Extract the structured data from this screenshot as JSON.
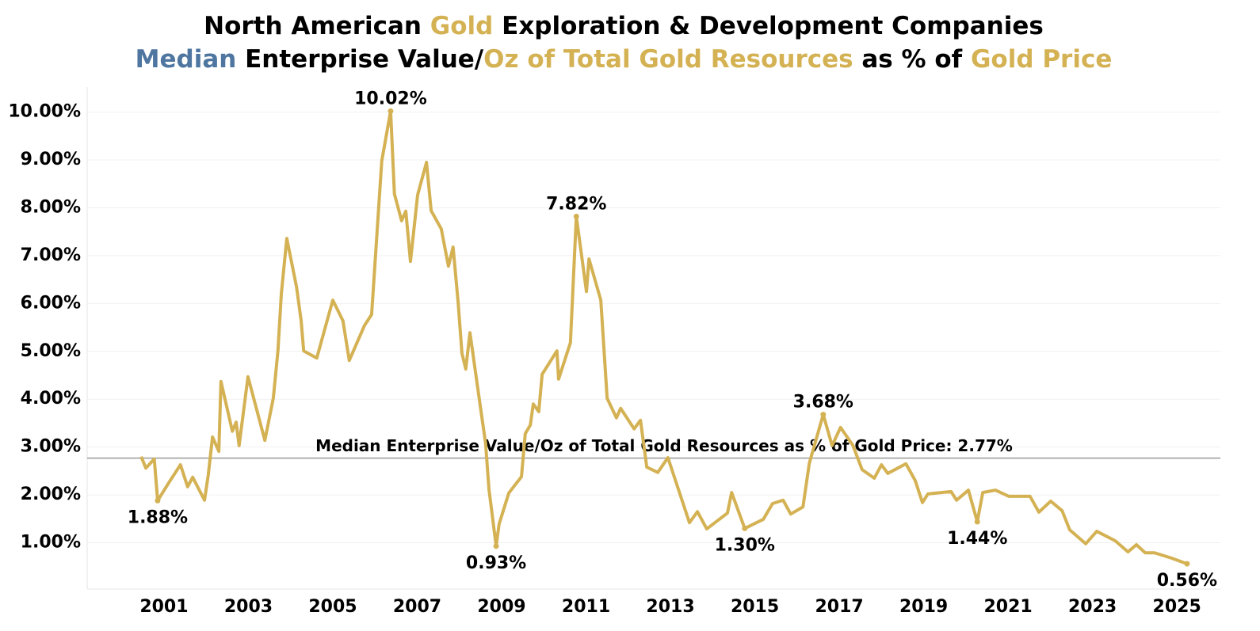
{
  "chart_data": {
    "type": "line",
    "title_lines": [
      [
        {
          "text": "North American ",
          "color": "#000000"
        },
        {
          "text": "Gold",
          "color": "#d4b254"
        },
        {
          "text": " Exploration & Development Companies",
          "color": "#000000"
        }
      ],
      [
        {
          "text": "Median",
          "color": "#4e76a0"
        },
        {
          "text": " Enterprise Value/",
          "color": "#000000"
        },
        {
          "text": "Oz of Total Gold Resources",
          "color": "#d4b254"
        },
        {
          "text": " as % of ",
          "color": "#000000"
        },
        {
          "text": "Gold Price",
          "color": "#d4b254"
        }
      ]
    ],
    "color": "#d4b254",
    "x": [
      2000.46,
      2000.57,
      2000.77,
      2000.85,
      2001.11,
      2001.39,
      2001.56,
      2001.68,
      2001.96,
      2002.05,
      2002.15,
      2002.3,
      2002.35,
      2002.62,
      2002.71,
      2002.78,
      2002.99,
      2003.39,
      2003.59,
      2003.7,
      2003.78,
      2003.91,
      2004.14,
      2004.25,
      2004.31,
      2004.62,
      2005.0,
      2005.24,
      2005.39,
      2005.75,
      2005.92,
      2006.16,
      2006.37,
      2006.46,
      2006.63,
      2006.73,
      2006.84,
      2007.01,
      2007.22,
      2007.33,
      2007.57,
      2007.74,
      2007.85,
      2007.97,
      2008.06,
      2008.15,
      2008.25,
      2008.46,
      2008.62,
      2008.7,
      2008.87,
      2008.94,
      2009.17,
      2009.47,
      2009.56,
      2009.68,
      2009.75,
      2009.88,
      2009.96,
      2010.31,
      2010.35,
      2010.63,
      2010.77,
      2011.01,
      2011.07,
      2011.35,
      2011.5,
      2011.72,
      2011.82,
      2012.14,
      2012.29,
      2012.44,
      2012.7,
      2012.94,
      2013.45,
      2013.64,
      2013.86,
      2014.35,
      2014.45,
      2014.76,
      2015.2,
      2015.42,
      2015.67,
      2015.85,
      2016.14,
      2016.29,
      2016.62,
      2016.83,
      2017.03,
      2017.32,
      2017.54,
      2017.83,
      2018.0,
      2018.15,
      2018.58,
      2018.8,
      2018.97,
      2019.1,
      2019.65,
      2019.78,
      2020.06,
      2020.27,
      2020.4,
      2020.7,
      2021.02,
      2021.52,
      2021.73,
      2022.01,
      2022.28,
      2022.46,
      2022.84,
      2023.1,
      2023.54,
      2023.84,
      2024.04,
      2024.25,
      2024.47,
      2024.87,
      2025.24
    ],
    "values": [
      2.8,
      2.56,
      2.75,
      1.88,
      2.25,
      2.63,
      2.17,
      2.37,
      1.89,
      2.42,
      3.21,
      2.91,
      4.37,
      3.33,
      3.52,
      3.03,
      4.47,
      3.14,
      4.02,
      5.01,
      6.2,
      7.36,
      6.35,
      5.64,
      5.01,
      4.86,
      6.07,
      5.64,
      4.81,
      5.54,
      5.77,
      8.98,
      10.02,
      8.29,
      7.73,
      7.93,
      6.88,
      8.27,
      8.95,
      7.94,
      7.56,
      6.78,
      7.18,
      6.02,
      4.96,
      4.63,
      5.39,
      4.07,
      3.08,
      2.12,
      0.93,
      1.39,
      2.04,
      2.38,
      3.28,
      3.46,
      3.9,
      3.74,
      4.52,
      5.01,
      4.42,
      5.18,
      7.82,
      6.25,
      6.93,
      6.07,
      4.02,
      3.61,
      3.81,
      3.38,
      3.56,
      2.58,
      2.47,
      2.78,
      1.42,
      1.65,
      1.29,
      1.62,
      2.05,
      1.3,
      1.49,
      1.82,
      1.89,
      1.6,
      1.75,
      2.66,
      3.68,
      3.03,
      3.41,
      3.04,
      2.53,
      2.35,
      2.63,
      2.45,
      2.65,
      2.3,
      1.84,
      2.02,
      2.07,
      1.89,
      2.1,
      1.44,
      2.05,
      2.1,
      1.97,
      1.97,
      1.64,
      1.87,
      1.67,
      1.27,
      0.98,
      1.24,
      1.04,
      0.81,
      0.96,
      0.79,
      0.79,
      0.68,
      0.56
    ],
    "value_labels": [
      null,
      null,
      null,
      "1.88%",
      null,
      null,
      null,
      null,
      null,
      null,
      null,
      null,
      null,
      null,
      null,
      null,
      null,
      null,
      null,
      null,
      null,
      null,
      null,
      null,
      null,
      null,
      null,
      null,
      null,
      null,
      null,
      null,
      "10.02%",
      null,
      null,
      null,
      null,
      null,
      null,
      null,
      null,
      null,
      null,
      null,
      null,
      null,
      null,
      null,
      null,
      null,
      "0.93%",
      null,
      null,
      null,
      null,
      null,
      null,
      null,
      null,
      null,
      null,
      null,
      "7.82%",
      null,
      null,
      null,
      null,
      null,
      null,
      null,
      null,
      null,
      null,
      null,
      null,
      null,
      null,
      null,
      null,
      "1.30%",
      null,
      null,
      null,
      null,
      null,
      null,
      "3.68%",
      null,
      null,
      null,
      null,
      null,
      null,
      null,
      null,
      null,
      null,
      null,
      null,
      null,
      null,
      "1.44%",
      null,
      null,
      null,
      null,
      null,
      null,
      null,
      null,
      null,
      null,
      null,
      null,
      null,
      null,
      null,
      null,
      "0.56%"
    ],
    "median": {
      "value": 2.77,
      "label": "Median Enterprise Value/Oz of Total Gold Resources as % of Gold Price: 2.77%"
    },
    "xlim": [
      1999.18,
      2026.03
    ],
    "xticks": [
      2001,
      2003,
      2005,
      2007,
      2009,
      2011,
      2013,
      2015,
      2017,
      2019,
      2021,
      2023,
      2025
    ],
    "ylim": [
      0,
      10.5
    ],
    "yticks": [
      {
        "value": 1,
        "label": "1.00%"
      },
      {
        "value": 2,
        "label": "2.00%"
      },
      {
        "value": 3,
        "label": "3.00%"
      },
      {
        "value": 4,
        "label": "4.00%"
      },
      {
        "value": 5,
        "label": "5.00%"
      },
      {
        "value": 6,
        "label": "6.00%"
      },
      {
        "value": 7,
        "label": "7.00%"
      },
      {
        "value": 8,
        "label": "8.00%"
      },
      {
        "value": 9,
        "label": "9.00%"
      },
      {
        "value": 10,
        "label": "10.00%"
      }
    ],
    "grid": true
  }
}
